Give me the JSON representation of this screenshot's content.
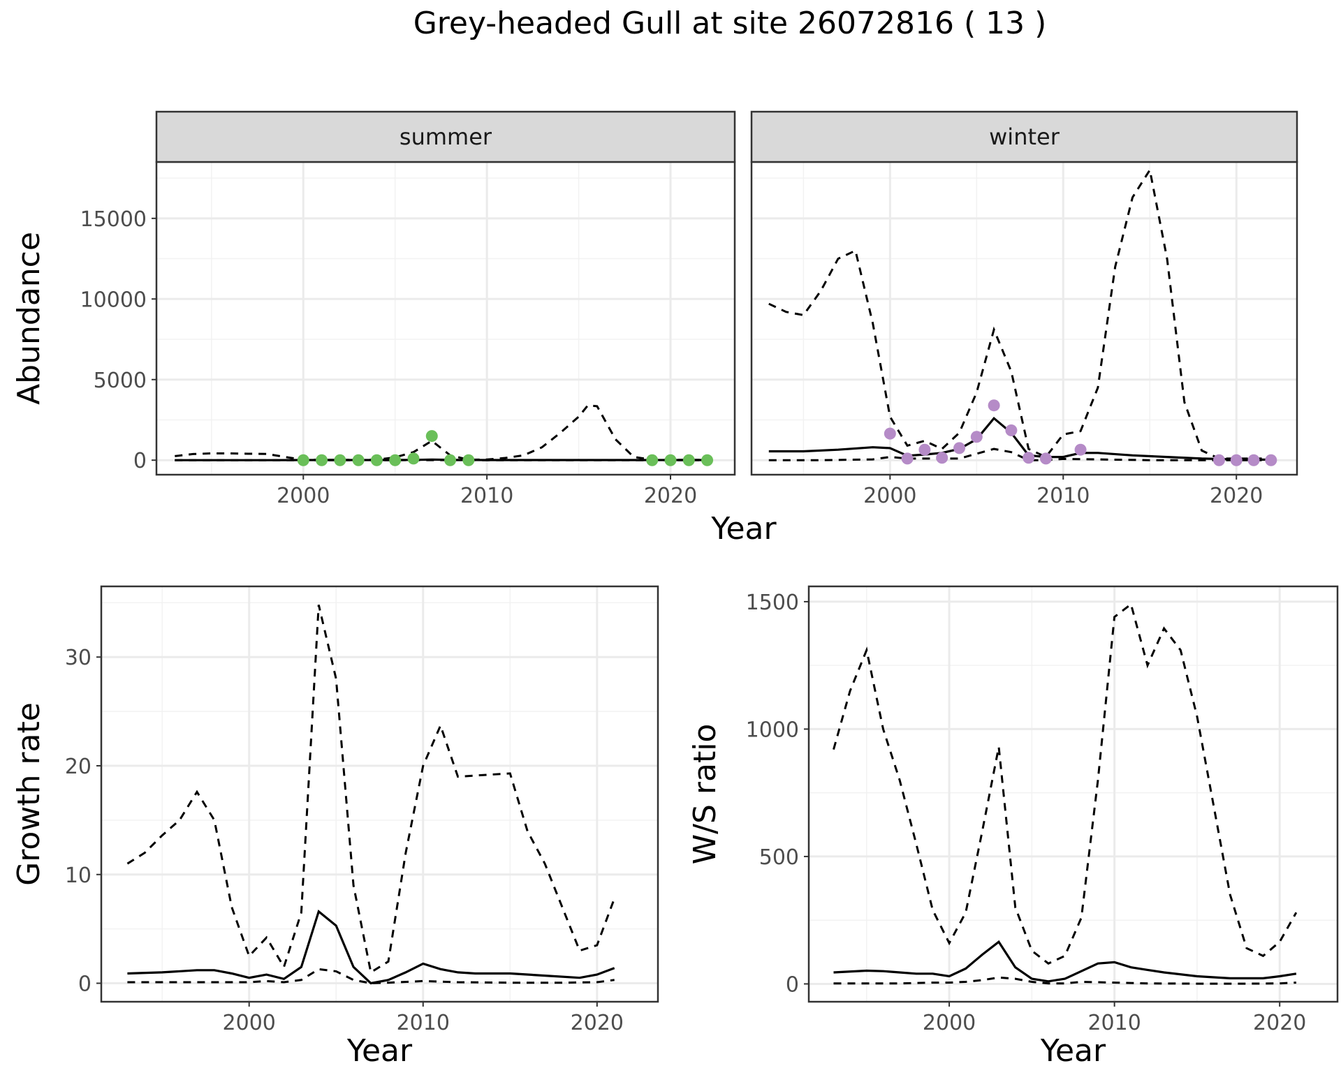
{
  "title": "Grey-headed Gull at site 26072816 ( 13 )",
  "colors": {
    "summer_points": "#6abf59",
    "winter_points": "#b58bc7",
    "lines": "#000000"
  },
  "chart_data": [
    {
      "type": "line",
      "panel": "summer",
      "strip": "summer",
      "xlabel": "Year",
      "ylabel": "Abundance",
      "xlim": [
        1992,
        2023.5
      ],
      "ylim": [
        -900,
        18500
      ],
      "xticks": [
        2000,
        2010,
        2020
      ],
      "yticks": [
        0,
        5000,
        10000,
        15000
      ],
      "point_color": "#6abf59",
      "series": [
        {
          "style": "solid",
          "x": [
            1993,
            1995,
            1998,
            2000,
            2002,
            2004,
            2006,
            2007,
            2008,
            2010,
            2012,
            2015,
            2018,
            2020,
            2022
          ],
          "y": [
            0,
            0,
            0,
            10,
            10,
            10,
            20,
            40,
            20,
            10,
            10,
            10,
            10,
            10,
            10
          ]
        },
        {
          "style": "dashed",
          "x": [
            1993,
            1994,
            1995,
            1996,
            1997,
            1998,
            1999,
            2000,
            2001,
            2002,
            2003,
            2004,
            2005,
            2006,
            2007,
            2008,
            2009,
            2010,
            2011,
            2012,
            2013,
            2014,
            2015,
            2015.5,
            2016,
            2017,
            2018,
            2019,
            2020,
            2021,
            2022
          ],
          "y": [
            250,
            380,
            420,
            420,
            400,
            390,
            200,
            30,
            20,
            20,
            20,
            30,
            180,
            500,
            1200,
            300,
            30,
            40,
            140,
            300,
            800,
            1700,
            2700,
            3400,
            3350,
            1300,
            200,
            30,
            20,
            20,
            20
          ]
        },
        {
          "style": "dashed",
          "x": [
            1993,
            2000,
            2005,
            2007,
            2010,
            2015,
            2020,
            2022
          ],
          "y": [
            0,
            0,
            0,
            5,
            0,
            0,
            0,
            0
          ]
        }
      ],
      "points": {
        "x": [
          2000,
          2001,
          2002,
          2003,
          2004,
          2005,
          2006,
          2007,
          2008,
          2009,
          2019,
          2020,
          2021,
          2022
        ],
        "y": [
          0,
          0,
          0,
          0,
          0,
          0,
          100,
          1500,
          0,
          0,
          0,
          0,
          0,
          0
        ]
      }
    },
    {
      "type": "line",
      "panel": "winter",
      "strip": "winter",
      "xlabel": "",
      "ylabel": "",
      "xlim": [
        1992,
        2023.5
      ],
      "ylim": [
        -900,
        18500
      ],
      "xticks": [
        2000,
        2010,
        2020
      ],
      "yticks": [],
      "point_color": "#b58bc7",
      "series": [
        {
          "style": "solid",
          "x": [
            1993,
            1995,
            1997,
            1999,
            2000,
            2001,
            2002,
            2003,
            2004,
            2005,
            2006,
            2007,
            2008,
            2009,
            2010,
            2011,
            2012,
            2014,
            2016,
            2018,
            2020,
            2022
          ],
          "y": [
            550,
            550,
            650,
            800,
            750,
            280,
            350,
            450,
            700,
            1300,
            2600,
            1700,
            300,
            200,
            200,
            450,
            450,
            300,
            200,
            100,
            50,
            30
          ]
        },
        {
          "style": "dashed",
          "x": [
            1993,
            1994,
            1995,
            1996,
            1997,
            1998,
            1999,
            2000,
            2001,
            2002,
            2003,
            2004,
            2005,
            2006,
            2007,
            2008,
            2009,
            2010,
            2011,
            2012,
            2013,
            2014,
            2015,
            2016,
            2017,
            2018,
            2019,
            2020,
            2021,
            2022
          ],
          "y": [
            9700,
            9200,
            9000,
            10500,
            12500,
            13000,
            8500,
            2700,
            900,
            1200,
            700,
            1700,
            4200,
            8100,
            5500,
            700,
            200,
            1600,
            1800,
            4500,
            12000,
            16300,
            18000,
            12500,
            3600,
            600,
            100,
            100,
            100,
            100
          ]
        },
        {
          "style": "dashed",
          "x": [
            1993,
            1996,
            1999,
            2000,
            2001,
            2002,
            2003,
            2004,
            2005,
            2006,
            2007,
            2008,
            2009,
            2010,
            2012,
            2015,
            2018,
            2020,
            2022
          ],
          "y": [
            0,
            0,
            50,
            200,
            100,
            100,
            100,
            100,
            400,
            700,
            500,
            0,
            0,
            80,
            50,
            0,
            0,
            0,
            0
          ]
        }
      ],
      "points": {
        "x": [
          2000,
          2001,
          2002,
          2003,
          2004,
          2005,
          2006,
          2007,
          2008,
          2009,
          2011,
          2019,
          2020,
          2021,
          2022
        ],
        "y": [
          1650,
          100,
          650,
          150,
          750,
          1450,
          3400,
          1850,
          150,
          100,
          650,
          0,
          0,
          0,
          0
        ]
      }
    },
    {
      "type": "line",
      "panel": "growth",
      "strip": "",
      "xlabel": "Year",
      "ylabel": "Growth rate",
      "xlim": [
        1991.5,
        2023.5
      ],
      "ylim": [
        -1.7,
        36.5
      ],
      "xticks": [
        2000,
        2010,
        2020
      ],
      "yticks": [
        0,
        10,
        20,
        30
      ],
      "point_color": "",
      "series": [
        {
          "style": "solid",
          "x": [
            1993,
            1995,
            1997,
            1998,
            1999,
            2000,
            2001,
            2002,
            2003,
            2004,
            2005,
            2006,
            2007,
            2008,
            2009,
            2010,
            2011,
            2012,
            2013,
            2015,
            2017,
            2019,
            2020,
            2021
          ],
          "y": [
            0.9,
            1.0,
            1.2,
            1.2,
            0.9,
            0.5,
            0.8,
            0.4,
            1.5,
            6.6,
            5.3,
            1.5,
            0.0,
            0.3,
            1.0,
            1.8,
            1.3,
            1.0,
            0.9,
            0.9,
            0.7,
            0.5,
            0.8,
            1.4
          ]
        },
        {
          "style": "dashed",
          "x": [
            1993,
            1994,
            1995,
            1996,
            1997,
            1998,
            1999,
            2000,
            2001,
            2002,
            2003,
            2004,
            2005,
            2006,
            2007,
            2008,
            2009,
            2010,
            2011,
            2012,
            2013,
            2015,
            2016,
            2017,
            2018,
            2019,
            2020,
            2021
          ],
          "y": [
            11.0,
            12.0,
            13.6,
            15.0,
            17.6,
            15.0,
            7.0,
            2.5,
            4.2,
            1.5,
            6.5,
            34.8,
            28.0,
            9.0,
            1.0,
            2.0,
            12.0,
            20.0,
            23.7,
            19.0,
            19.1,
            19.3,
            14.0,
            11.0,
            7.0,
            3.0,
            3.5,
            7.8
          ]
        },
        {
          "style": "dashed",
          "x": [
            1993,
            1995,
            1997,
            1999,
            2000,
            2001,
            2002,
            2003,
            2004,
            2005,
            2006,
            2007,
            2008,
            2010,
            2012,
            2015,
            2018,
            2020,
            2021
          ],
          "y": [
            0.1,
            0.1,
            0.1,
            0.1,
            0.1,
            0.2,
            0.1,
            0.3,
            1.3,
            1.1,
            0.3,
            0.0,
            0.05,
            0.2,
            0.1,
            0.05,
            0.05,
            0.1,
            0.3
          ]
        }
      ]
    },
    {
      "type": "line",
      "panel": "ratio",
      "strip": "",
      "xlabel": "Year",
      "ylabel": "W/S ratio",
      "xlim": [
        1991.5,
        2023.5
      ],
      "ylim": [
        -70,
        1560
      ],
      "xticks": [
        2000,
        2010,
        2020
      ],
      "yticks": [
        0,
        500,
        1000,
        1500
      ],
      "point_color": "",
      "series": [
        {
          "style": "solid",
          "x": [
            1993,
            1995,
            1996,
            1997,
            1998,
            1999,
            2000,
            2001,
            2002,
            2003,
            2004,
            2005,
            2006,
            2007,
            2008,
            2009,
            2010,
            2011,
            2012,
            2013,
            2015,
            2017,
            2019,
            2020,
            2021
          ],
          "y": [
            45,
            52,
            50,
            45,
            40,
            40,
            30,
            60,
            115,
            165,
            65,
            20,
            10,
            20,
            50,
            80,
            85,
            65,
            55,
            45,
            30,
            22,
            22,
            30,
            40
          ]
        },
        {
          "style": "dashed",
          "x": [
            1993,
            1994,
            1995,
            1996,
            1997,
            1998,
            1999,
            2000,
            2001,
            2002,
            2003,
            2004,
            2005,
            2006,
            2007,
            2008,
            2009,
            2010,
            2011,
            2012,
            2013,
            2014,
            2015,
            2016,
            2017,
            2018,
            2019,
            2020,
            2021
          ],
          "y": [
            920,
            1150,
            1310,
            1000,
            800,
            550,
            290,
            160,
            280,
            600,
            930,
            300,
            130,
            80,
            110,
            260,
            800,
            1440,
            1490,
            1250,
            1395,
            1310,
            1050,
            700,
            350,
            140,
            110,
            165,
            280
          ]
        },
        {
          "style": "dashed",
          "x": [
            1993,
            1995,
            1997,
            1999,
            2000,
            2001,
            2002,
            2003,
            2004,
            2005,
            2006,
            2007,
            2008,
            2010,
            2012,
            2015,
            2018,
            2020,
            2021
          ],
          "y": [
            2,
            2,
            2,
            5,
            5,
            8,
            15,
            25,
            20,
            8,
            2,
            2,
            8,
            5,
            2,
            1,
            1,
            2,
            5
          ]
        }
      ]
    }
  ]
}
